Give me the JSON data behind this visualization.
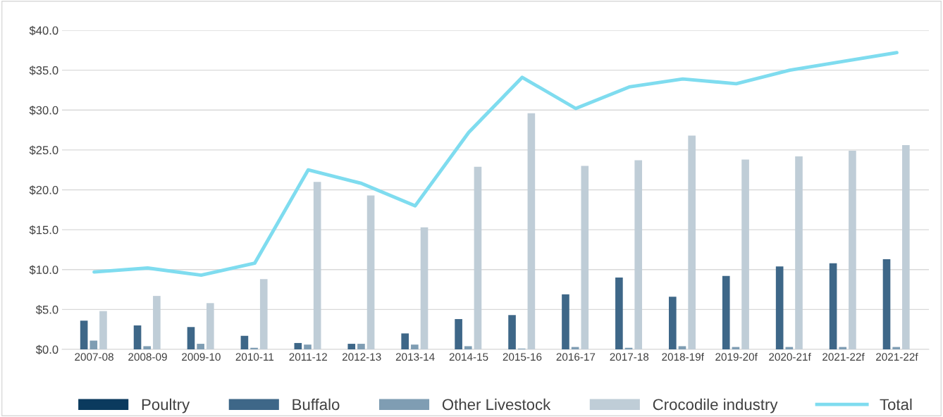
{
  "chart_data": {
    "type": "bar",
    "categories": [
      "2007-08",
      "2008-09",
      "2009-10",
      "2010-11",
      "2011-12",
      "2012-13",
      "2013-14",
      "2014-15",
      "2015-16",
      "2016-17",
      "2017-18",
      "2018-19f",
      "2019-20f",
      "2020-21f",
      "2021-22f",
      "2021-22f"
    ],
    "series": [
      {
        "name": "Poultry",
        "color": "#0b3a5e",
        "values": [
          0,
          0,
          0,
          0,
          0,
          0,
          0,
          0,
          0,
          0,
          0,
          0,
          0,
          0,
          0,
          0
        ]
      },
      {
        "name": "Buffalo",
        "color": "#3e6788",
        "values": [
          3.6,
          3.0,
          2.8,
          1.7,
          0.8,
          0.7,
          2.0,
          3.8,
          4.3,
          6.9,
          9.0,
          6.6,
          9.2,
          10.4,
          10.8,
          11.3
        ]
      },
      {
        "name": "Other Livestock",
        "color": "#7f9db3",
        "values": [
          1.1,
          0.4,
          0.7,
          0.2,
          0.6,
          0.7,
          0.6,
          0.4,
          0.1,
          0.3,
          0.2,
          0.4,
          0.3,
          0.3,
          0.3,
          0.3
        ]
      },
      {
        "name": "Crocodile industry",
        "color": "#bfcdd7",
        "values": [
          4.8,
          6.7,
          5.8,
          8.8,
          21.0,
          19.3,
          15.3,
          22.9,
          29.6,
          23.0,
          23.7,
          26.8,
          23.8,
          24.2,
          24.9,
          25.6
        ]
      },
      {
        "name": "Total",
        "color": "#7fdcef",
        "type": "line",
        "values": [
          9.7,
          10.2,
          9.3,
          10.8,
          22.5,
          20.8,
          18.0,
          27.2,
          34.1,
          30.2,
          32.9,
          33.9,
          33.3,
          35.0,
          36.1,
          37.2
        ]
      }
    ],
    "ylim": [
      0,
      40
    ],
    "yticks": [
      {
        "value": 0,
        "label": "$0.0"
      },
      {
        "value": 5,
        "label": "$5.0"
      },
      {
        "value": 10,
        "label": "$10.0"
      },
      {
        "value": 15,
        "label": "$15.0"
      },
      {
        "value": 20,
        "label": "$20.0"
      },
      {
        "value": 25,
        "label": "$25.0"
      },
      {
        "value": 30,
        "label": "$30.0"
      },
      {
        "value": 35,
        "label": "$35.0"
      },
      {
        "value": 40,
        "label": "$40.0"
      }
    ],
    "grid": "y",
    "legend": "bottom",
    "marker": "none",
    "line_style": "solid"
  }
}
